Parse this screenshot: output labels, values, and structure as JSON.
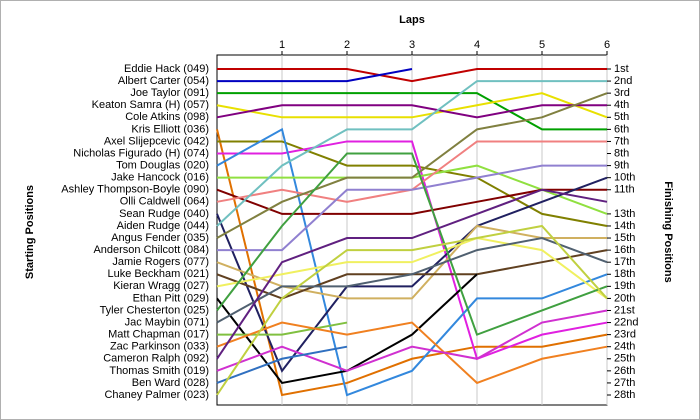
{
  "chart_data": {
    "type": "bump",
    "xlabel": "Laps",
    "ylabel": "Starting Positions",
    "y2label": "Finishing Positions",
    "xlim": [
      0,
      6
    ],
    "xticks": [
      1,
      2,
      3,
      4,
      5,
      6
    ],
    "ylim": [
      1,
      28
    ],
    "y2ticks": [
      {
        "value": 1,
        "label": "1st"
      },
      {
        "value": 2,
        "label": "2nd"
      },
      {
        "value": 3,
        "label": "3rd"
      },
      {
        "value": 4,
        "label": "4th"
      },
      {
        "value": 5,
        "label": "5th"
      },
      {
        "value": 6,
        "label": "6th"
      },
      {
        "value": 7,
        "label": "7th"
      },
      {
        "value": 8,
        "label": "8th"
      },
      {
        "value": 9,
        "label": "9th"
      },
      {
        "value": 10,
        "label": "10th"
      },
      {
        "value": 11,
        "label": "11th"
      },
      {
        "value": 13,
        "label": "13th"
      },
      {
        "value": 14,
        "label": "14th"
      },
      {
        "value": 15,
        "label": "15th"
      },
      {
        "value": 16,
        "label": "16th"
      },
      {
        "value": 17,
        "label": "17th"
      },
      {
        "value": 18,
        "label": "18th"
      },
      {
        "value": 19,
        "label": "19th"
      },
      {
        "value": 20,
        "label": "20th"
      },
      {
        "value": 21,
        "label": "21st"
      },
      {
        "value": 22,
        "label": "22nd"
      },
      {
        "value": 23,
        "label": "23rd"
      },
      {
        "value": 24,
        "label": "24th"
      },
      {
        "value": 25,
        "label": "25th"
      },
      {
        "value": 26,
        "label": "26th"
      },
      {
        "value": 27,
        "label": "27th"
      },
      {
        "value": 28,
        "label": "28th"
      }
    ],
    "x": [
      0,
      1,
      2,
      3,
      4,
      5,
      6
    ],
    "grid": true,
    "series": [
      {
        "name": "Eddie Hack (049)",
        "color": "#c00000",
        "values": [
          1,
          1,
          1,
          2,
          1,
          1,
          1
        ]
      },
      {
        "name": "Albert Carter (054)",
        "color": "#0000c0",
        "values": [
          2,
          2,
          2,
          1,
          null,
          null,
          null
        ]
      },
      {
        "name": "Joe Taylor (091)",
        "color": "#00a000",
        "values": [
          3,
          3,
          3,
          3,
          3,
          6,
          6
        ]
      },
      {
        "name": "Keaton Samra (H) (057)",
        "color": "#e8e000",
        "values": [
          4,
          5,
          5,
          5,
          4,
          3,
          5
        ]
      },
      {
        "name": "Cole Atkins (098)",
        "color": "#800080",
        "values": [
          5,
          4,
          4,
          4,
          5,
          4,
          4
        ]
      },
      {
        "name": "Kris Elliott (036)",
        "color": "#e07000",
        "values": [
          6,
          28,
          27,
          25,
          24,
          24,
          23
        ]
      },
      {
        "name": "Axel Slijepcevic (042)",
        "color": "#808000",
        "values": [
          7,
          7,
          9,
          9,
          10,
          13,
          14
        ]
      },
      {
        "name": "Nicholas Figurado (H) (074)",
        "color": "#e020e0",
        "values": [
          8,
          8,
          7,
          7,
          25,
          23,
          22
        ]
      },
      {
        "name": "Tom Douglas (020)",
        "color": "#3388dd",
        "values": [
          9,
          6,
          28,
          26,
          20,
          20,
          18
        ]
      },
      {
        "name": "Jake Hancock (016)",
        "color": "#90e040",
        "values": [
          10,
          10,
          10,
          10,
          9,
          11,
          13
        ]
      },
      {
        "name": "Ashley Thompson-Boyle (090)",
        "color": "#800000",
        "values": [
          11,
          13,
          13,
          13,
          12,
          11,
          11
        ]
      },
      {
        "name": "Olli Caldwell (064)",
        "color": "#f08080",
        "values": [
          12,
          11,
          12,
          11,
          7,
          7,
          7
        ]
      },
      {
        "name": "Sean Rudge (040)",
        "color": "#202060",
        "values": [
          13,
          26,
          19,
          19,
          14,
          12,
          10
        ]
      },
      {
        "name": "Aiden Rudge (044)",
        "color": "#70c0c0",
        "values": [
          14,
          9,
          6,
          6,
          2,
          2,
          2
        ]
      },
      {
        "name": "Angus Fender (035)",
        "color": "#808040",
        "values": [
          15,
          12,
          10,
          10,
          6,
          5,
          3
        ]
      },
      {
        "name": "Anderson Chilcott (084)",
        "color": "#9080d0",
        "values": [
          16,
          16,
          11,
          11,
          10,
          9,
          9
        ]
      },
      {
        "name": "Jamie Rogers (077)",
        "color": "#d0b060",
        "values": [
          17,
          19,
          20,
          20,
          14,
          15,
          15
        ]
      },
      {
        "name": "Luke Beckham (021)",
        "color": "#604020",
        "values": [
          18,
          20,
          18,
          18,
          18,
          17,
          16
        ]
      },
      {
        "name": "Kieran Wragg (027)",
        "color": "#f0f060",
        "values": [
          19,
          18,
          17,
          17,
          15,
          16,
          20
        ]
      },
      {
        "name": "Ethan Pitt (029)",
        "color": "#000000",
        "values": [
          20,
          27,
          26,
          23,
          18,
          null,
          null
        ]
      },
      {
        "name": "Tyler Chesterton (025)",
        "color": "#40a040",
        "values": [
          21,
          14,
          8,
          8,
          23,
          21,
          19
        ]
      },
      {
        "name": "Jac Maybin (071)",
        "color": "#506070",
        "values": [
          22,
          19,
          19,
          18,
          16,
          15,
          17
        ]
      },
      {
        "name": "Matt Chapman (017)",
        "color": "#80c040",
        "values": [
          23,
          23,
          22,
          null,
          null,
          null,
          null
        ]
      },
      {
        "name": "Zac Parkinson (033)",
        "color": "#f08020",
        "values": [
          24,
          22,
          23,
          22,
          27,
          25,
          24
        ]
      },
      {
        "name": "Cameron Ralph (092)",
        "color": "#602080",
        "values": [
          25,
          17,
          15,
          15,
          13,
          11,
          12
        ]
      },
      {
        "name": "Thomas Smith (019)",
        "color": "#d030d0",
        "values": [
          26,
          24,
          26,
          24,
          25,
          22,
          21
        ]
      },
      {
        "name": "Ben Ward (028)",
        "color": "#3070c0",
        "values": [
          27,
          25,
          24,
          null,
          null,
          null,
          null
        ]
      },
      {
        "name": "Chaney Palmer (023)",
        "color": "#c0d040",
        "values": [
          28,
          20,
          16,
          16,
          15,
          14,
          20
        ]
      }
    ]
  }
}
